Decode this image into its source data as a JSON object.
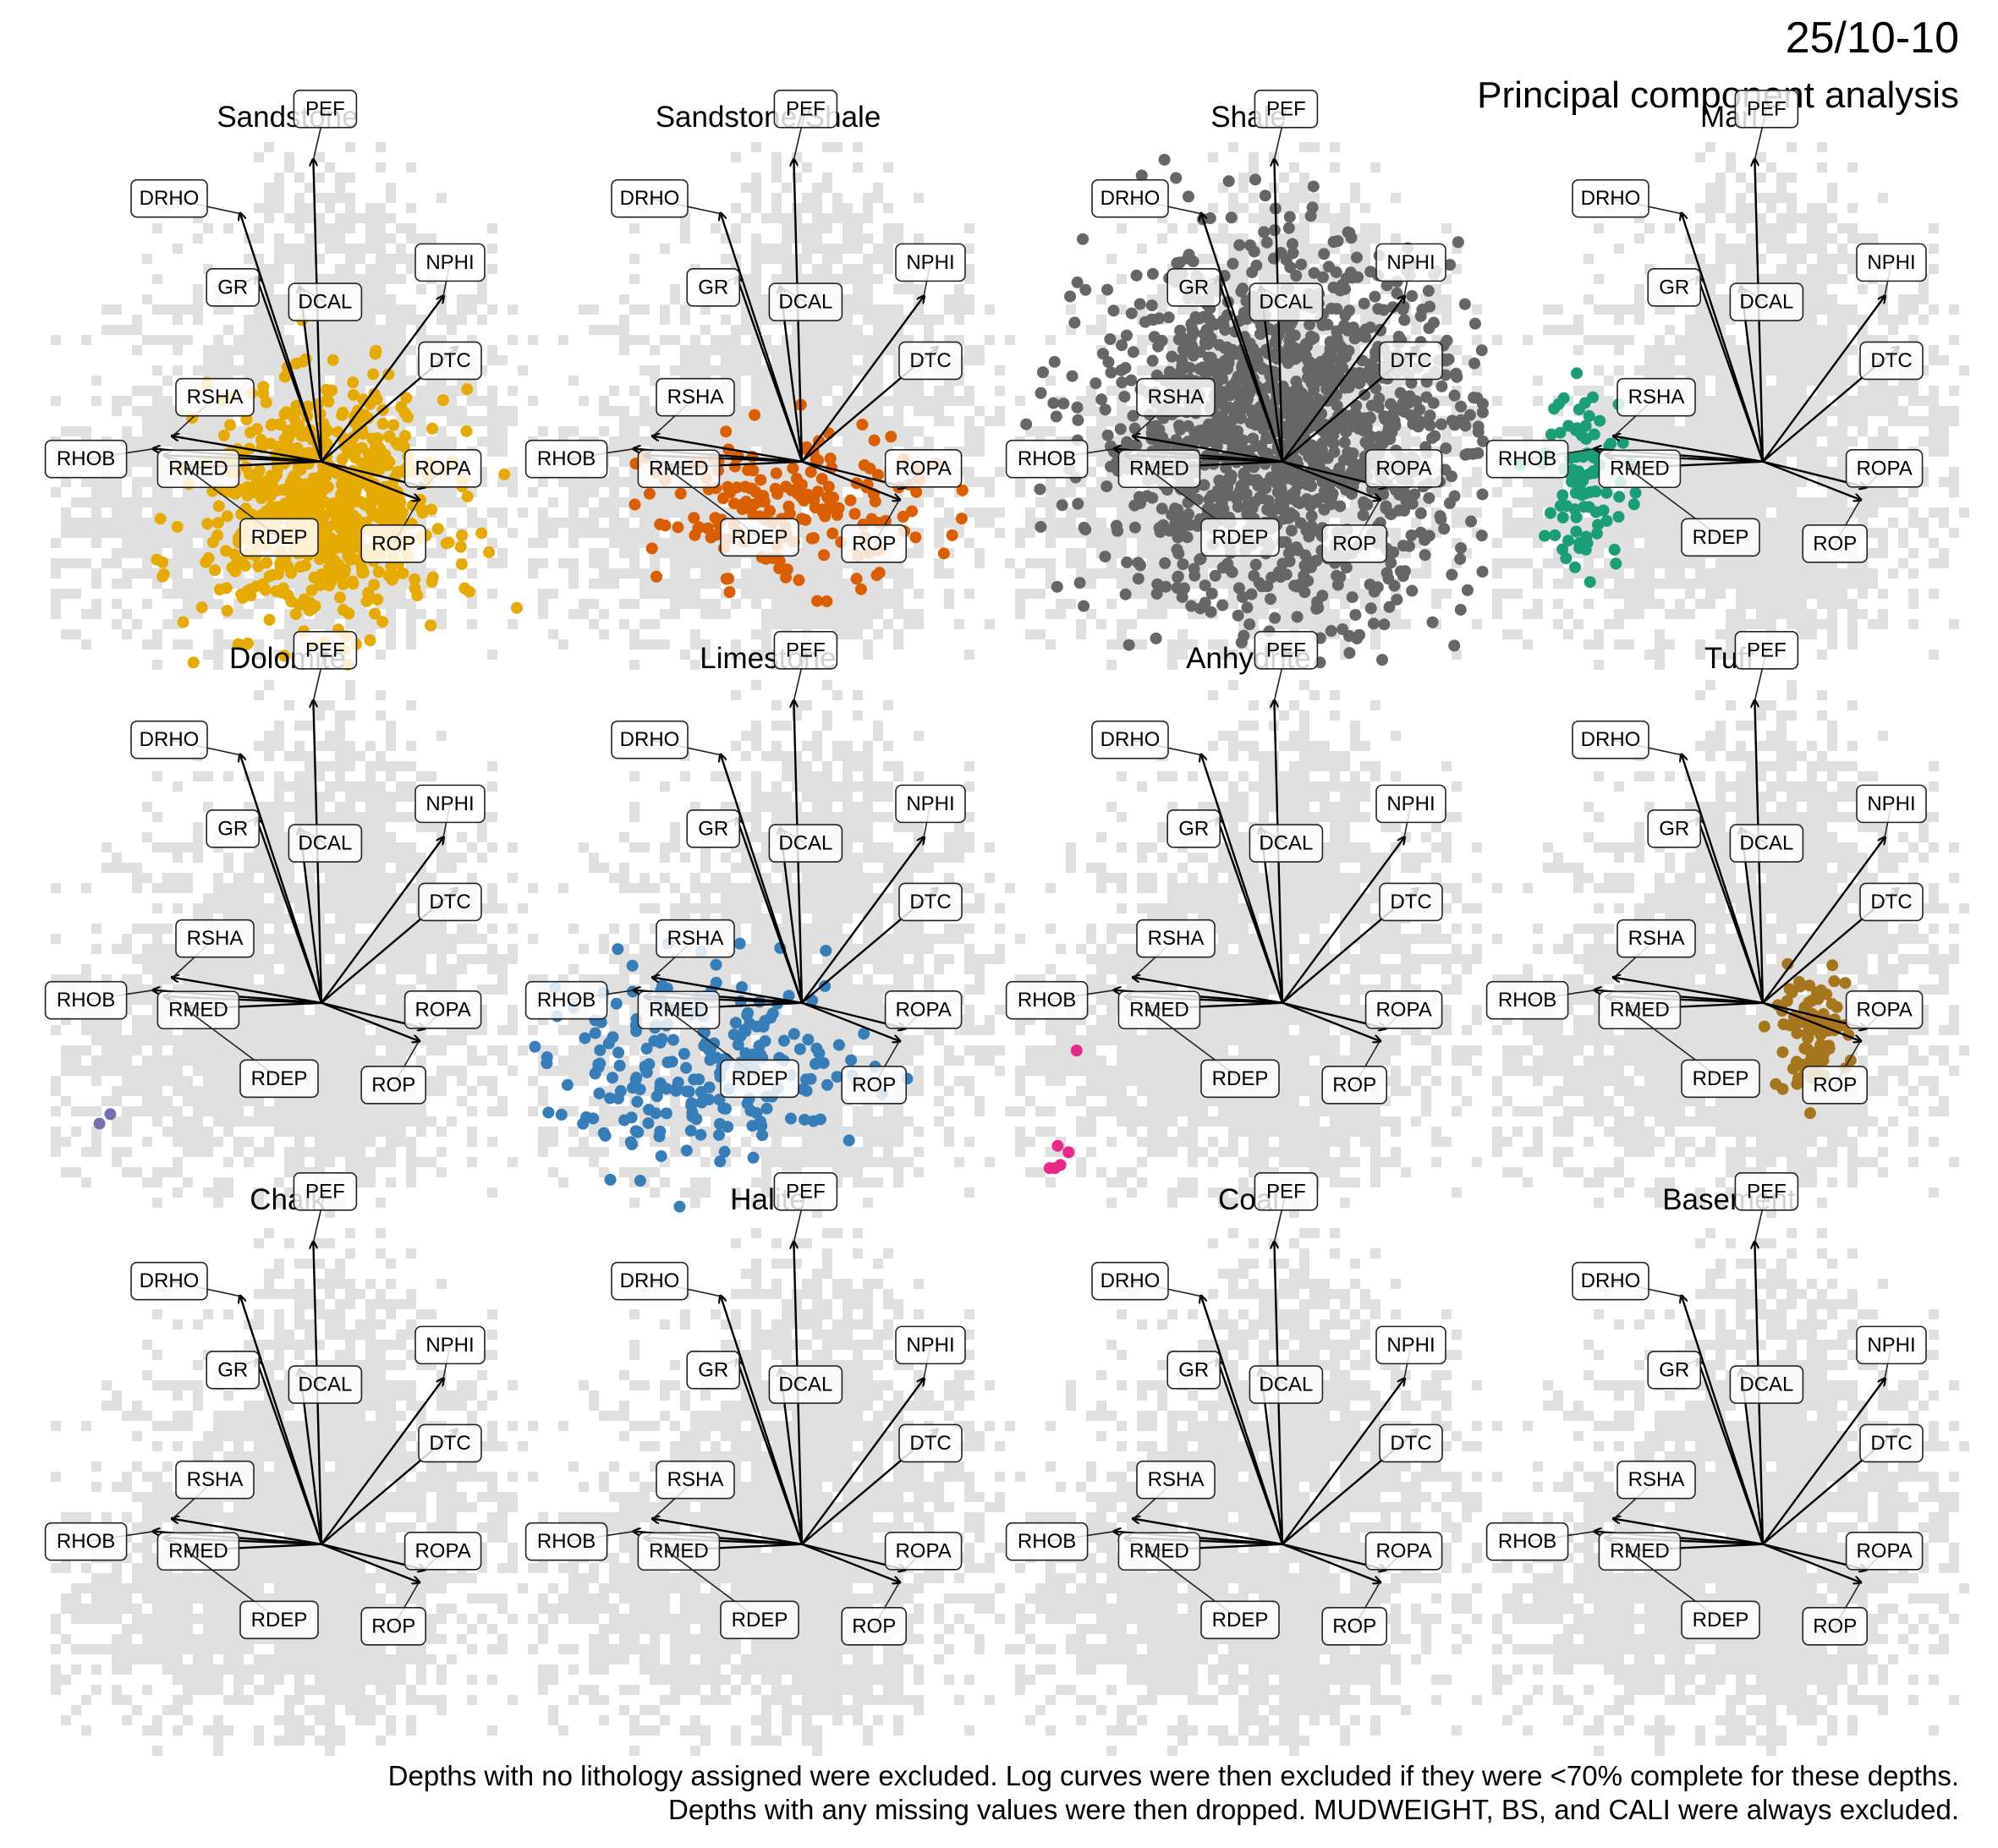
{
  "header": {
    "well": "25/10-10",
    "title": "Principal component analysis"
  },
  "footer": {
    "note_line1": "Depths with no lithology assigned were excluded. Log curves were then excluded if they were <70% complete for these depths.",
    "note_line2": "Depths with any missing values were then dropped. MUDWEIGHT, BS, and CALI were always excluded."
  },
  "colors": {
    "background_scores": "#e0e0e0",
    "arrows": "#000000",
    "Sandstone": "#e6ab02",
    "Sandstone/Shale": "#d95f02",
    "Shale": "#666666",
    "Marl": "#1b9e77",
    "Dolomite": "#7570b3",
    "Limestone": "#377eb8",
    "Anhydrite": "#e7298a",
    "Tuff": "#a6761d",
    "Chalk": "#e6ab02",
    "Halite": "#e6ab02",
    "Coal": "#666666",
    "Basement": "#7570b3"
  },
  "chart_data": {
    "type": "scatter",
    "description_type": "PCA biplot facets",
    "xlim": [
      -1.0,
      0.75
    ],
    "ylim": [
      -0.65,
      1.0
    ],
    "grid": false,
    "loadings": [
      {
        "name": "PEF",
        "x": -0.03,
        "y": 0.95
      },
      {
        "name": "DRHO",
        "x": -0.3,
        "y": 0.78
      },
      {
        "name": "GR",
        "x": -0.24,
        "y": 0.58
      },
      {
        "name": "DCAL",
        "x": -0.08,
        "y": 0.55
      },
      {
        "name": "NPHI",
        "x": 0.45,
        "y": 0.52
      },
      {
        "name": "DTC",
        "x": 0.5,
        "y": 0.36
      },
      {
        "name": "ROPA",
        "x": 0.38,
        "y": -0.08
      },
      {
        "name": "ROP",
        "x": 0.36,
        "y": -0.12
      },
      {
        "name": "RSHA",
        "x": -0.55,
        "y": 0.08
      },
      {
        "name": "RHOB",
        "x": -0.62,
        "y": 0.04
      },
      {
        "name": "RMED",
        "x": -0.58,
        "y": 0.02
      },
      {
        "name": "RDEP",
        "x": -0.5,
        "y": -0.02
      }
    ],
    "facets": [
      {
        "name": "Sandstone",
        "cluster": {
          "cx": 0.02,
          "cy": -0.15,
          "sx": 0.22,
          "sy": 0.18,
          "n": 700
        }
      },
      {
        "name": "Sandstone/Shale",
        "cluster": {
          "cx": -0.05,
          "cy": -0.15,
          "sx": 0.25,
          "sy": 0.12,
          "n": 180
        }
      },
      {
        "name": "Shale",
        "cluster": {
          "cx": 0.0,
          "cy": 0.1,
          "sx": 0.35,
          "sy": 0.28,
          "n": 1400
        }
      },
      {
        "name": "Marl",
        "cluster": {
          "cx": -0.65,
          "cy": -0.05,
          "sx": 0.08,
          "sy": 0.15,
          "n": 90
        }
      },
      {
        "name": "Dolomite",
        "points": [
          {
            "x": -0.82,
            "y": -0.38
          },
          {
            "x": -0.78,
            "y": -0.35
          }
        ]
      },
      {
        "name": "Limestone",
        "cluster": {
          "cx": -0.35,
          "cy": -0.2,
          "sx": 0.3,
          "sy": 0.15,
          "n": 230
        }
      },
      {
        "name": "Anhydrite",
        "points": [
          {
            "x": -0.76,
            "y": -0.15
          },
          {
            "x": -0.83,
            "y": -0.45
          },
          {
            "x": -0.79,
            "y": -0.47
          },
          {
            "x": -0.82,
            "y": -0.51
          },
          {
            "x": -0.86,
            "y": -0.52
          },
          {
            "x": -0.84,
            "y": -0.52
          }
        ]
      },
      {
        "name": "Tuff",
        "cluster": {
          "cx": 0.17,
          "cy": -0.09,
          "sx": 0.07,
          "sy": 0.09,
          "n": 90
        }
      },
      {
        "name": "Chalk",
        "cluster": null
      },
      {
        "name": "Halite",
        "cluster": null
      },
      {
        "name": "Coal",
        "cluster": null
      },
      {
        "name": "Basement",
        "cluster": null
      }
    ]
  }
}
